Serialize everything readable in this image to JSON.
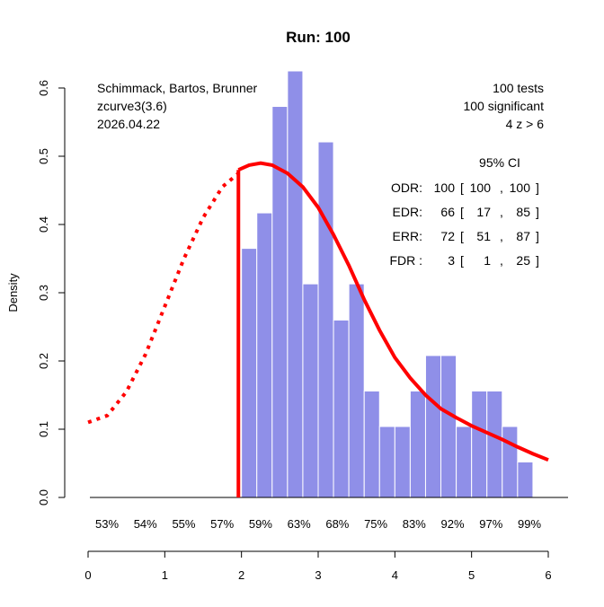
{
  "chart_data": {
    "type": "bar",
    "title": "Run: 100",
    "xlabel": "",
    "ylabel": "Density",
    "xlim": [
      0,
      6
    ],
    "ylim": [
      0,
      0.6
    ],
    "x_ticks": [
      "0",
      "1",
      "2",
      "3",
      "4",
      "5",
      "6"
    ],
    "y_ticks": [
      "0.0",
      "0.1",
      "0.2",
      "0.3",
      "0.4",
      "0.5",
      "0.6"
    ],
    "power_labels": [
      "53%",
      "54%",
      "55%",
      "57%",
      "59%",
      "63%",
      "68%",
      "75%",
      "83%",
      "92%",
      "97%",
      "99%"
    ],
    "bar_color": "#8f8fe8",
    "curve_color": "#ff0000",
    "bin_width": 0.2,
    "bin_start": 2.0,
    "bars": [
      0.365,
      0.417,
      0.573,
      0.625,
      0.313,
      0.521,
      0.26,
      0.313,
      0.156,
      0.104,
      0.104,
      0.156,
      0.208,
      0.208,
      0.104,
      0.156,
      0.156,
      0.104,
      0.052
    ],
    "cutoff_z": 1.96,
    "curve_dotted": {
      "x": [
        0,
        0.25,
        0.5,
        0.75,
        1.0,
        1.25,
        1.5,
        1.75,
        1.96
      ],
      "y": [
        0.11,
        0.12,
        0.155,
        0.21,
        0.28,
        0.35,
        0.41,
        0.455,
        0.475
      ]
    },
    "curve_solid": {
      "x": [
        1.96,
        2.1,
        2.25,
        2.4,
        2.6,
        2.8,
        3.0,
        3.2,
        3.4,
        3.6,
        3.8,
        4.0,
        4.2,
        4.4,
        4.6,
        4.8,
        5.0,
        5.2,
        5.4,
        5.6,
        5.8,
        6.0
      ],
      "y": [
        0.48,
        0.487,
        0.49,
        0.487,
        0.475,
        0.455,
        0.425,
        0.385,
        0.34,
        0.29,
        0.245,
        0.205,
        0.175,
        0.15,
        0.13,
        0.117,
        0.105,
        0.095,
        0.085,
        0.074,
        0.064,
        0.055
      ]
    },
    "annotations_left": [
      "Schimmack, Bartos, Brunner",
      "zcurve3(3.6)",
      "2026.04.22"
    ],
    "annotations_right": [
      "100 tests",
      "100 significant",
      "4 z > 6"
    ],
    "ci_header": "95% CI",
    "stats": [
      {
        "name": "ODR:",
        "est": "100",
        "lo": "100",
        "hi": "100"
      },
      {
        "name": "EDR:",
        "est": "66",
        "lo": "17",
        "hi": "85"
      },
      {
        "name": "ERR:",
        "est": "72",
        "lo": "51",
        "hi": "87"
      },
      {
        "name": "FDR :",
        "est": "3",
        "lo": "1",
        "hi": "25"
      }
    ]
  }
}
